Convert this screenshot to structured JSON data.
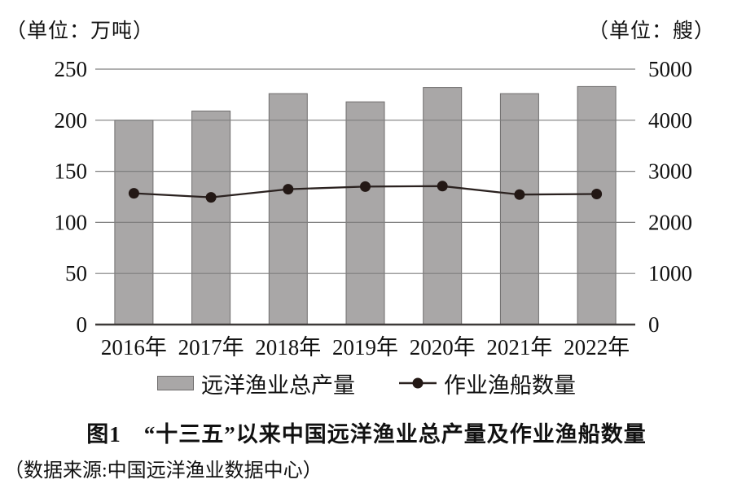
{
  "units": {
    "left": "（单位：万吨）",
    "right": "（单位：艘）"
  },
  "chart_data": {
    "type": "bar+line",
    "categories": [
      "2016年",
      "2017年",
      "2018年",
      "2019年",
      "2020年",
      "2021年",
      "2022年"
    ],
    "series": [
      {
        "name": "远洋渔业总产量",
        "type": "bar",
        "axis": "left",
        "unit": "万吨",
        "values": [
          200,
          209,
          226,
          218,
          232,
          226,
          233
        ]
      },
      {
        "name": "作业渔船数量",
        "type": "line",
        "axis": "right",
        "unit": "艘",
        "values": [
          2570,
          2490,
          2650,
          2700,
          2710,
          2545,
          2555
        ]
      }
    ],
    "y_left": {
      "label": "（单位：万吨）",
      "min": 0,
      "max": 250,
      "ticks": [
        0,
        50,
        100,
        150,
        200,
        250
      ]
    },
    "y_right": {
      "label": "（单位：艘）",
      "min": 0,
      "max": 5000,
      "ticks": [
        0,
        1000,
        2000,
        3000,
        4000,
        5000
      ]
    },
    "grid": "horizontal",
    "legend_position": "bottom"
  },
  "legend": [
    {
      "label": "远洋渔业总产量",
      "marker": "bar-swatch"
    },
    {
      "label": "作业渔船数量",
      "marker": "line-dot"
    }
  ],
  "title": "图1　“十三五”以来中国远洋渔业总产量及作业渔船数量",
  "source": "（数据来源:中国远洋渔业数据中心）",
  "colors": {
    "bar_fill": "#a9a7a7",
    "bar_stroke": "#6f6d6d",
    "grid_line": "#7f7f7f",
    "axis_line": "#3e3a39",
    "series_line": "#2b2220",
    "dot": "#231815",
    "text": "#111111"
  }
}
